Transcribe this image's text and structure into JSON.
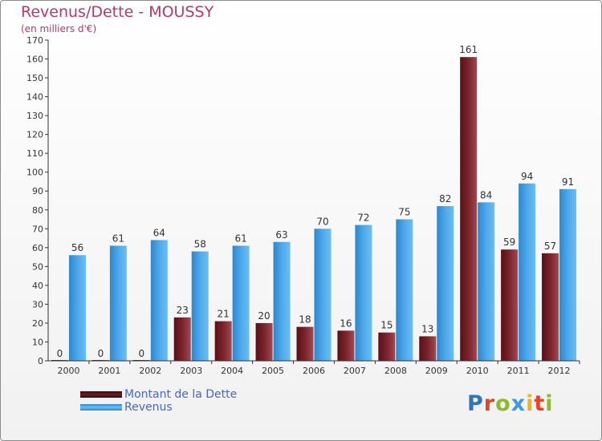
{
  "header": {
    "title": "Revenus/Dette - MOUSSY",
    "subtitle": "(en milliers d'€)"
  },
  "chart_data": {
    "type": "bar",
    "categories": [
      "2000",
      "2001",
      "2002",
      "2003",
      "2004",
      "2005",
      "2006",
      "2007",
      "2008",
      "2009",
      "2010",
      "2011",
      "2012"
    ],
    "series": [
      {
        "name": "Montant de la Dette",
        "color": "#6e1d25",
        "values": [
          0,
          0,
          0,
          23,
          21,
          20,
          18,
          16,
          15,
          13,
          161,
          59,
          57
        ]
      },
      {
        "name": "Revenus",
        "color": "#4aa3e6",
        "values": [
          56,
          61,
          64,
          58,
          61,
          63,
          70,
          72,
          75,
          82,
          84,
          94,
          91
        ]
      }
    ],
    "ylim": [
      0,
      170
    ],
    "yticks": [
      0,
      10,
      20,
      30,
      40,
      50,
      60,
      70,
      80,
      90,
      100,
      110,
      120,
      130,
      140,
      150,
      160,
      170
    ],
    "grid": false,
    "legend_position": "bottom-left"
  },
  "legend": {
    "items": [
      {
        "label": "Montant de la Dette",
        "color": "#6e1d25"
      },
      {
        "label": "Revenus",
        "color": "#4aa3e6"
      }
    ]
  },
  "logo": {
    "letters": [
      "P",
      "r",
      "o",
      "x",
      "i",
      "t",
      "i"
    ],
    "colors": [
      "#2f74c0",
      "#e1462a",
      "#8dbb2e",
      "#3f99dc",
      "#f0b21d",
      "#e1462a",
      "#8dbb2e"
    ]
  }
}
